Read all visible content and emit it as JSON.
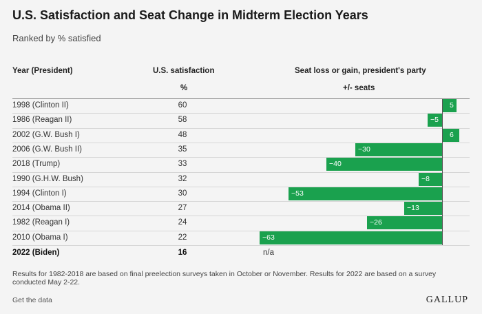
{
  "title": "U.S. Satisfaction and Seat Change in Midterm Election Years",
  "subtitle": "Ranked by % satisfied",
  "headers": {
    "year": "Year (President)",
    "satisfaction": "U.S. satisfaction",
    "satisfaction_unit": "%",
    "seats": "Seat loss or gain, president's party",
    "seats_unit": "+/- seats"
  },
  "chart_data": {
    "type": "bar",
    "orientation": "horizontal",
    "title": "U.S. Satisfaction and Seat Change in Midterm Election Years",
    "subtitle": "Ranked by % satisfied",
    "categories": [
      "1998 (Clinton II)",
      "1986 (Reagan II)",
      "2002 (G.W. Bush I)",
      "2006 (G.W. Bush II)",
      "2018 (Trump)",
      "1990 (G.H.W. Bush)",
      "1994 (Clinton I)",
      "2014 (Obama II)",
      "1982 (Reagan I)",
      "2010 (Obama I)"
    ],
    "satisfaction": [
      60,
      58,
      48,
      35,
      33,
      32,
      30,
      27,
      24,
      22
    ],
    "values": [
      5,
      -5,
      6,
      -30,
      -40,
      -8,
      -53,
      -13,
      -26,
      -63
    ],
    "value_labels": [
      "5",
      "−5",
      "6",
      "−30",
      "−40",
      "−8",
      "−53",
      "−13",
      "−26",
      "−63"
    ],
    "xlim": [
      -63,
      6
    ],
    "extra_row": {
      "category": "2022 (Biden)",
      "satisfaction": "16",
      "seats": "n/a"
    },
    "bar_color": "#1aa14e"
  },
  "footnote": "Results for 1982-2018 are based on final preelection surveys taken in October or November. Results for 2022 are based on a survey conducted May 2-22.",
  "get_data": "Get the data",
  "logo": "GALLUP"
}
